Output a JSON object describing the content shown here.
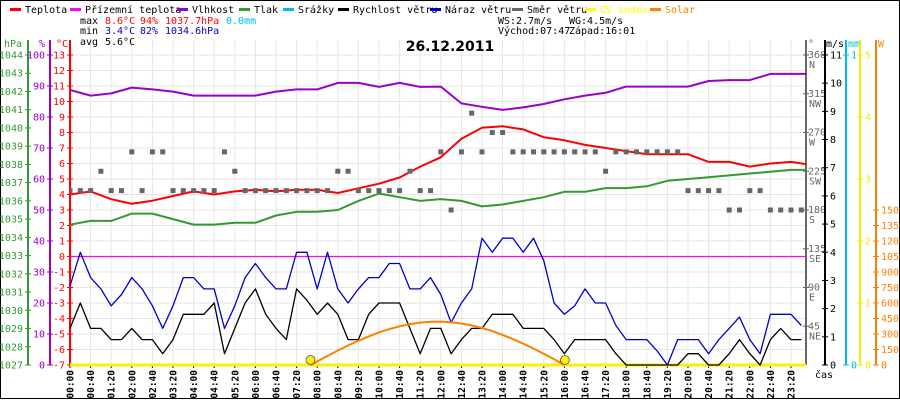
{
  "title": "26.12.2011",
  "legend": [
    {
      "label": "Teplota",
      "color": "#ff0000"
    },
    {
      "label": "Přízemní teplota",
      "color": "#ff00ff"
    },
    {
      "label": "Vlhkost",
      "color": "#9900cc"
    },
    {
      "label": "Tlak",
      "color": "#339933"
    },
    {
      "label": "Srážky",
      "color": "#00bbee"
    },
    {
      "label": "Rychlost větru",
      "color": "#000000"
    },
    {
      "label": "Náraz větru",
      "color": "#0000cc"
    },
    {
      "label": "Směr větru",
      "color": "#666666"
    },
    {
      "label": "UV index",
      "color": "#ffff00"
    },
    {
      "label": "Solar",
      "color": "#ff8000"
    }
  ],
  "stats": {
    "max_label": "max",
    "min_label": "min",
    "avg_label": "avg",
    "max_temp": "8.6°C",
    "max_hum": "94%",
    "max_press": "1037.7hPa",
    "max_rain": "0.0mm",
    "min_temp": "3.4°C",
    "min_hum": "82%",
    "min_press": "1034.6hPa",
    "avg_temp": "5.6°C",
    "ws": "WS:2.7m/s",
    "wg": "WG:4.5m/s",
    "sunrise": "Východ:07:47",
    "sunset": "Západ:16:01"
  },
  "axes": {
    "hpa": {
      "label": "hPa",
      "ticks": [
        1027,
        1028,
        1029,
        1030,
        1031,
        1032,
        1033,
        1034,
        1035,
        1036,
        1037,
        1038,
        1039,
        1040,
        1041,
        1042,
        1043,
        1044
      ]
    },
    "pct": {
      "label": "%",
      "ticks": [
        0,
        10,
        20,
        30,
        40,
        50,
        60,
        70,
        80,
        90,
        100
      ]
    },
    "degc": {
      "label": "°C",
      "ticks": [
        -7,
        -6,
        -5,
        -4,
        -3,
        -2,
        -1,
        0,
        1,
        2,
        3,
        4,
        5,
        6,
        7,
        8,
        9,
        10,
        11,
        12,
        13
      ]
    },
    "dir": {
      "label": "°",
      "ticks": [
        {
          "v": 360,
          "label": "360",
          "compass": "N"
        },
        {
          "v": 315,
          "label": "315",
          "compass": "NW"
        },
        {
          "v": 270,
          "label": "270",
          "compass": "W"
        },
        {
          "v": 225,
          "label": "225",
          "compass": "SW"
        },
        {
          "v": 180,
          "label": "180",
          "compass": "S"
        },
        {
          "v": 135,
          "label": "135",
          "compass": "SE"
        },
        {
          "v": 90,
          "label": "90",
          "compass": "E"
        },
        {
          "v": 45,
          "label": "45",
          "compass": "NE"
        }
      ]
    },
    "ms": {
      "label": "m/s",
      "ticks": [
        0,
        1,
        2,
        3,
        4,
        5,
        6,
        7,
        8,
        9,
        10,
        11
      ]
    },
    "mm": {
      "label": "mm",
      "ticks": [
        0,
        1
      ]
    },
    "uv": {
      "label": "",
      "ticks": [
        0,
        1,
        2,
        3,
        4,
        5
      ]
    },
    "w": {
      "label": "W",
      "ticks": [
        0,
        150,
        300,
        450,
        600,
        750,
        900,
        1050,
        1200,
        1350,
        1500
      ]
    },
    "time": {
      "label": "čas",
      "ticks": [
        "00:00",
        "00:40",
        "01:20",
        "02:00",
        "02:40",
        "03:20",
        "04:00",
        "04:40",
        "05:20",
        "06:00",
        "06:40",
        "07:20",
        "08:00",
        "08:40",
        "09:20",
        "10:00",
        "10:40",
        "11:20",
        "12:00",
        "12:40",
        "13:20",
        "14:00",
        "14:40",
        "15:20",
        "16:00",
        "16:40",
        "17:20",
        "18:00",
        "18:40",
        "19:20",
        "20:00",
        "20:40",
        "21:20",
        "22:00",
        "22:40",
        "23:20"
      ]
    }
  },
  "chart_data": {
    "type": "line",
    "title": "26.12.2011",
    "xlabel": "čas",
    "xlim": [
      "00:00",
      "23:50"
    ],
    "grid": true,
    "legend_position": "top",
    "series": [
      {
        "name": "Teplota",
        "unit": "°C",
        "ylim": [
          -7,
          13
        ],
        "step_minutes": 40,
        "values": [
          4.0,
          4.2,
          3.7,
          3.4,
          3.6,
          3.9,
          4.2,
          4.0,
          4.2,
          4.3,
          4.2,
          4.3,
          4.3,
          4.1,
          4.4,
          4.7,
          5.1,
          5.8,
          6.4,
          7.6,
          8.3,
          8.4,
          8.2,
          7.7,
          7.5,
          7.2,
          7.0,
          6.8,
          6.6,
          6.6,
          6.6,
          6.1,
          6.1,
          5.8,
          6.0,
          6.1,
          5.9
        ]
      },
      {
        "name": "Přízemní teplota",
        "unit": "°C",
        "ylim": [
          -7,
          13
        ],
        "step_minutes": 720,
        "values": [
          0,
          0,
          0
        ]
      },
      {
        "name": "Vlhkost",
        "unit": "%",
        "ylim": [
          0,
          100
        ],
        "step_minutes": 40,
        "values": [
          88.7,
          86.9,
          87.6,
          89.5,
          88.9,
          88.2,
          86.9,
          86.9,
          86.9,
          86.9,
          88.2,
          88.9,
          88.9,
          91,
          91,
          89.7,
          91,
          89.7,
          89.8,
          84.4,
          83.3,
          82.3,
          83.1,
          84.2,
          85.7,
          86.9,
          87.8,
          89.8,
          89.8,
          89.8,
          89.8,
          91.6,
          91.9,
          91.9,
          93.9,
          93.9,
          93.9
        ]
      },
      {
        "name": "Tlak",
        "unit": "hPa",
        "ylim": [
          1027,
          1044
        ],
        "step_minutes": 40,
        "values": [
          1034.7,
          1034.9,
          1034.9,
          1035.3,
          1035.3,
          1035.0,
          1034.7,
          1034.7,
          1034.8,
          1034.8,
          1035.2,
          1035.4,
          1035.4,
          1035.5,
          1036.0,
          1036.4,
          1036.2,
          1036.0,
          1036.1,
          1036.0,
          1035.7,
          1035.8,
          1036.0,
          1036.2,
          1036.5,
          1036.5,
          1036.7,
          1036.7,
          1036.8,
          1037.1,
          1037.2,
          1037.3,
          1037.4,
          1037.5,
          1037.6,
          1037.7,
          1037.7
        ]
      },
      {
        "name": "Srážky",
        "unit": "mm",
        "ylim": [
          0,
          1
        ],
        "step_minutes": 720,
        "values": [
          0,
          0,
          0
        ]
      },
      {
        "name": "Rychlost větru",
        "unit": "m/s",
        "ylim": [
          0,
          11
        ],
        "step_minutes": 20,
        "values": [
          1.3,
          2.2,
          1.3,
          1.3,
          0.9,
          0.9,
          1.3,
          0.9,
          0.9,
          0.4,
          0.9,
          1.8,
          1.8,
          1.8,
          2.2,
          0.4,
          1.3,
          2.2,
          2.7,
          1.8,
          1.3,
          0.9,
          2.7,
          2.3,
          1.8,
          2.2,
          1.8,
          0.9,
          0.9,
          1.8,
          2.2,
          2.2,
          2.2,
          1.3,
          0.4,
          1.3,
          1.3,
          0.4,
          0.9,
          1.3,
          1.3,
          1.8,
          1.8,
          1.8,
          1.3,
          1.3,
          1.3,
          0.9,
          0.4,
          0.9,
          0.9,
          0.9,
          0.9,
          0.4,
          0,
          0,
          0,
          0,
          0,
          0,
          0.4,
          0.4,
          0,
          0,
          0.4,
          0.9,
          0.4,
          0,
          0.9,
          1.3,
          0.9,
          0.9
        ]
      },
      {
        "name": "Náraz větru",
        "unit": "m/s",
        "ylim": [
          0,
          11
        ],
        "step_minutes": 20,
        "values": [
          2.8,
          4.0,
          3.1,
          2.7,
          2.1,
          2.5,
          3.1,
          2.7,
          2.1,
          1.3,
          2.1,
          3.1,
          3.1,
          2.7,
          2.7,
          1.3,
          2.1,
          3.1,
          3.6,
          3.1,
          2.7,
          2.7,
          4.0,
          4.0,
          2.7,
          4.0,
          2.7,
          2.2,
          2.7,
          3.1,
          3.1,
          3.6,
          3.6,
          2.7,
          2.7,
          3.1,
          2.5,
          1.5,
          2.2,
          2.7,
          4.5,
          4.0,
          4.5,
          4.5,
          4.0,
          4.5,
          3.7,
          2.2,
          1.8,
          2.1,
          2.7,
          2.2,
          2.2,
          1.4,
          0.9,
          0.9,
          0.9,
          0.5,
          0,
          0.9,
          0.9,
          0.9,
          0.4,
          0.9,
          1.3,
          1.7,
          0.9,
          0.4,
          1.8,
          1.8,
          1.8,
          1.4
        ]
      },
      {
        "name": "Směr větru",
        "unit": "°",
        "ylim": [
          0,
          360
        ],
        "step_minutes": 20,
        "marker": "square",
        "values": [
          202.5,
          202.5,
          202.5,
          225,
          202.5,
          202.5,
          247.5,
          202.5,
          247.5,
          247.5,
          202.5,
          202.5,
          202.5,
          202.5,
          202.5,
          247.5,
          225,
          202.5,
          202.5,
          202.5,
          202.5,
          202.5,
          202.5,
          202.5,
          202.5,
          202.5,
          225,
          225,
          202.5,
          202.5,
          202.5,
          202.5,
          202.5,
          225,
          202.5,
          202.5,
          247.5,
          180,
          247.5,
          292.5,
          247.5,
          270,
          270,
          247.5,
          247.5,
          247.5,
          247.5,
          247.5,
          247.5,
          247.5,
          247.5,
          247.5,
          225,
          247.5,
          247.5,
          247.5,
          247.5,
          247.5,
          247.5,
          247.5,
          202.5,
          202.5,
          202.5,
          202.5,
          180,
          180,
          202.5,
          202.5,
          180,
          180,
          180,
          180
        ]
      },
      {
        "name": "UV index",
        "unit": "",
        "ylim": [
          0,
          5
        ],
        "step_minutes": 720,
        "values": [
          0,
          0,
          0
        ]
      },
      {
        "name": "Solar",
        "unit": "W",
        "ylim": [
          0,
          3000
        ],
        "start": "07:47",
        "step_minutes": 20,
        "first_step_start": "08:00",
        "values": [
          0,
          35,
          87,
          140,
          189,
          234,
          277,
          315,
          347,
          375,
          396,
          410,
          418,
          420,
          414,
          402,
          383,
          358,
          328,
          291,
          251,
          206,
          160,
          108,
          55,
          0
        ]
      }
    ],
    "markers": [
      {
        "name": "sunrise",
        "time": "07:47"
      },
      {
        "name": "sunset",
        "time": "16:01"
      }
    ]
  }
}
